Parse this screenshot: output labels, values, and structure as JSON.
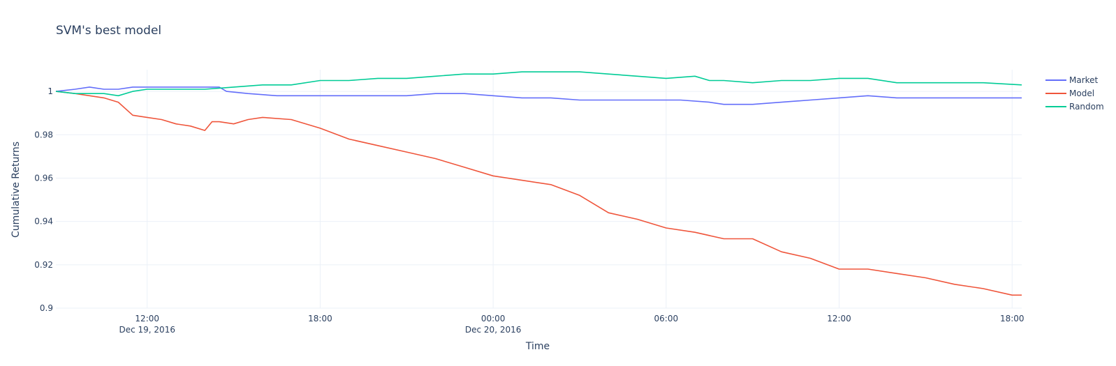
{
  "chart_data": {
    "type": "line",
    "title": "SVM's best model",
    "xlabel": "Time",
    "ylabel": "Cumulative Returns",
    "x_range": [
      "2016-12-19T08:50",
      "2016-12-20T18:20"
    ],
    "ylim": [
      0.9,
      1.01
    ],
    "grid": true,
    "legend_position": "top-right",
    "y_ticks": [
      {
        "value": 0.9,
        "label": "0.9"
      },
      {
        "value": 0.92,
        "label": "0.92"
      },
      {
        "value": 0.94,
        "label": "0.94"
      },
      {
        "value": 0.96,
        "label": "0.96"
      },
      {
        "value": 0.98,
        "label": "0.98"
      },
      {
        "value": 1.0,
        "label": "1"
      }
    ],
    "x_ticks": [
      {
        "value": "2016-12-19T12:00",
        "label": "12:00",
        "sublabel": "Dec 19, 2016"
      },
      {
        "value": "2016-12-19T18:00",
        "label": "18:00",
        "sublabel": ""
      },
      {
        "value": "2016-12-20T00:00",
        "label": "00:00",
        "sublabel": "Dec 20, 2016"
      },
      {
        "value": "2016-12-20T06:00",
        "label": "06:00",
        "sublabel": ""
      },
      {
        "value": "2016-12-20T12:00",
        "label": "12:00",
        "sublabel": ""
      },
      {
        "value": "2016-12-20T18:00",
        "label": "18:00",
        "sublabel": ""
      }
    ],
    "series": [
      {
        "name": "Market",
        "color": "#636efa",
        "points": [
          [
            "2016-12-19T08:50",
            1.0
          ],
          [
            "2016-12-19T09:30",
            1.001
          ],
          [
            "2016-12-19T10:00",
            1.002
          ],
          [
            "2016-12-19T10:30",
            1.001
          ],
          [
            "2016-12-19T11:00",
            1.001
          ],
          [
            "2016-12-19T11:30",
            1.002
          ],
          [
            "2016-12-19T12:30",
            1.002
          ],
          [
            "2016-12-19T13:30",
            1.002
          ],
          [
            "2016-12-19T14:30",
            1.002
          ],
          [
            "2016-12-19T14:45",
            1.0
          ],
          [
            "2016-12-19T15:30",
            0.999
          ],
          [
            "2016-12-19T16:30",
            0.998
          ],
          [
            "2016-12-19T18:00",
            0.998
          ],
          [
            "2016-12-19T19:30",
            0.998
          ],
          [
            "2016-12-19T21:00",
            0.998
          ],
          [
            "2016-12-19T22:00",
            0.999
          ],
          [
            "2016-12-19T23:00",
            0.999
          ],
          [
            "2016-12-20T00:00",
            0.998
          ],
          [
            "2016-12-20T01:00",
            0.997
          ],
          [
            "2016-12-20T02:00",
            0.997
          ],
          [
            "2016-12-20T03:00",
            0.996
          ],
          [
            "2016-12-20T04:00",
            0.996
          ],
          [
            "2016-12-20T05:00",
            0.996
          ],
          [
            "2016-12-20T06:00",
            0.996
          ],
          [
            "2016-12-20T06:30",
            0.996
          ],
          [
            "2016-12-20T07:30",
            0.995
          ],
          [
            "2016-12-20T08:00",
            0.994
          ],
          [
            "2016-12-20T09:00",
            0.994
          ],
          [
            "2016-12-20T10:00",
            0.995
          ],
          [
            "2016-12-20T11:00",
            0.996
          ],
          [
            "2016-12-20T12:00",
            0.997
          ],
          [
            "2016-12-20T13:00",
            0.998
          ],
          [
            "2016-12-20T14:00",
            0.997
          ],
          [
            "2016-12-20T15:00",
            0.997
          ],
          [
            "2016-12-20T16:00",
            0.997
          ],
          [
            "2016-12-20T17:00",
            0.997
          ],
          [
            "2016-12-20T18:20",
            0.997
          ]
        ]
      },
      {
        "name": "Model",
        "color": "#ef553b",
        "points": [
          [
            "2016-12-19T08:50",
            1.0
          ],
          [
            "2016-12-19T09:30",
            0.999
          ],
          [
            "2016-12-19T10:00",
            0.998
          ],
          [
            "2016-12-19T10:30",
            0.997
          ],
          [
            "2016-12-19T11:00",
            0.995
          ],
          [
            "2016-12-19T11:30",
            0.989
          ],
          [
            "2016-12-19T12:00",
            0.988
          ],
          [
            "2016-12-19T12:30",
            0.987
          ],
          [
            "2016-12-19T13:00",
            0.985
          ],
          [
            "2016-12-19T13:30",
            0.984
          ],
          [
            "2016-12-19T14:00",
            0.982
          ],
          [
            "2016-12-19T14:15",
            0.986
          ],
          [
            "2016-12-19T14:30",
            0.986
          ],
          [
            "2016-12-19T15:00",
            0.985
          ],
          [
            "2016-12-19T15:30",
            0.987
          ],
          [
            "2016-12-19T16:00",
            0.988
          ],
          [
            "2016-12-19T17:00",
            0.987
          ],
          [
            "2016-12-19T18:00",
            0.983
          ],
          [
            "2016-12-19T19:00",
            0.978
          ],
          [
            "2016-12-19T20:00",
            0.975
          ],
          [
            "2016-12-19T21:00",
            0.972
          ],
          [
            "2016-12-19T22:00",
            0.969
          ],
          [
            "2016-12-19T23:00",
            0.965
          ],
          [
            "2016-12-20T00:00",
            0.961
          ],
          [
            "2016-12-20T01:00",
            0.959
          ],
          [
            "2016-12-20T02:00",
            0.957
          ],
          [
            "2016-12-20T03:00",
            0.952
          ],
          [
            "2016-12-20T04:00",
            0.944
          ],
          [
            "2016-12-20T05:00",
            0.941
          ],
          [
            "2016-12-20T06:00",
            0.937
          ],
          [
            "2016-12-20T07:00",
            0.935
          ],
          [
            "2016-12-20T08:00",
            0.932
          ],
          [
            "2016-12-20T09:00",
            0.932
          ],
          [
            "2016-12-20T10:00",
            0.926
          ],
          [
            "2016-12-20T11:00",
            0.923
          ],
          [
            "2016-12-20T12:00",
            0.918
          ],
          [
            "2016-12-20T13:00",
            0.918
          ],
          [
            "2016-12-20T14:00",
            0.916
          ],
          [
            "2016-12-20T15:00",
            0.914
          ],
          [
            "2016-12-20T16:00",
            0.911
          ],
          [
            "2016-12-20T17:00",
            0.909
          ],
          [
            "2016-12-20T18:00",
            0.906
          ],
          [
            "2016-12-20T18:20",
            0.906
          ]
        ]
      },
      {
        "name": "Random",
        "color": "#00cc96",
        "points": [
          [
            "2016-12-19T08:50",
            1.0
          ],
          [
            "2016-12-19T09:30",
            0.999
          ],
          [
            "2016-12-19T10:00",
            0.999
          ],
          [
            "2016-12-19T10:30",
            0.999
          ],
          [
            "2016-12-19T11:00",
            0.998
          ],
          [
            "2016-12-19T11:30",
            1.0
          ],
          [
            "2016-12-19T12:00",
            1.001
          ],
          [
            "2016-12-19T13:00",
            1.001
          ],
          [
            "2016-12-19T14:00",
            1.001
          ],
          [
            "2016-12-19T15:00",
            1.002
          ],
          [
            "2016-12-19T16:00",
            1.003
          ],
          [
            "2016-12-19T17:00",
            1.003
          ],
          [
            "2016-12-19T18:00",
            1.005
          ],
          [
            "2016-12-19T19:00",
            1.005
          ],
          [
            "2016-12-19T20:00",
            1.006
          ],
          [
            "2016-12-19T21:00",
            1.006
          ],
          [
            "2016-12-19T22:00",
            1.007
          ],
          [
            "2016-12-19T23:00",
            1.008
          ],
          [
            "2016-12-20T00:00",
            1.008
          ],
          [
            "2016-12-20T01:00",
            1.009
          ],
          [
            "2016-12-20T02:00",
            1.009
          ],
          [
            "2016-12-20T03:00",
            1.009
          ],
          [
            "2016-12-20T04:00",
            1.008
          ],
          [
            "2016-12-20T05:00",
            1.007
          ],
          [
            "2016-12-20T06:00",
            1.006
          ],
          [
            "2016-12-20T07:00",
            1.007
          ],
          [
            "2016-12-20T07:30",
            1.005
          ],
          [
            "2016-12-20T08:00",
            1.005
          ],
          [
            "2016-12-20T09:00",
            1.004
          ],
          [
            "2016-12-20T10:00",
            1.005
          ],
          [
            "2016-12-20T11:00",
            1.005
          ],
          [
            "2016-12-20T12:00",
            1.006
          ],
          [
            "2016-12-20T13:00",
            1.006
          ],
          [
            "2016-12-20T14:00",
            1.004
          ],
          [
            "2016-12-20T15:00",
            1.004
          ],
          [
            "2016-12-20T16:00",
            1.004
          ],
          [
            "2016-12-20T17:00",
            1.004
          ],
          [
            "2016-12-20T18:20",
            1.003
          ]
        ]
      }
    ]
  }
}
